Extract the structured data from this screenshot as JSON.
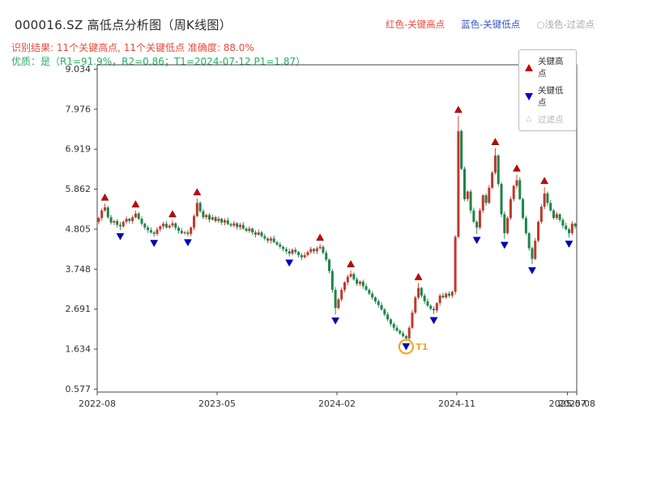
{
  "header": {
    "title": "000016.SZ 高低点分析图（周K线图）",
    "legend_top": {
      "high": "红色-关键高点",
      "low": "蓝色-关键低点",
      "filter": "○浅色-过滤点"
    },
    "result_line": "识别结果: 11个关键高点, 11个关键低点  准确度: 88.0%",
    "quality_line": "优质：是（R1=91.9%，R2=0.86；T1=2024-07-12 P1=1.87）"
  },
  "legend_box": {
    "items": [
      {
        "label": "关键高点",
        "type": "key-high"
      },
      {
        "label": "关键低点",
        "type": "key-low"
      },
      {
        "label": "过滤点",
        "type": "filtered"
      }
    ]
  },
  "colors": {
    "up": "#c0392b",
    "down": "#1e8449",
    "key_high_marker": "#cc0000",
    "key_low_marker": "#0000cd",
    "t1_ring": "#f5a623",
    "axis": "#444444",
    "tick_text": "#333333"
  },
  "chart_data": {
    "type": "candlestick",
    "title": "000016.SZ 高低点分析图（周K线图）",
    "period": "weekly",
    "ylim": [
      0.5,
      9.15
    ],
    "y_ticks": [
      0.577,
      1.634,
      2.691,
      3.748,
      4.805,
      5.862,
      6.919,
      7.976,
      9.034
    ],
    "x_ticks": [
      {
        "label": "2022-08",
        "i": 0
      },
      {
        "label": "2023-05",
        "i": 39
      },
      {
        "label": "2024-02",
        "i": 78
      },
      {
        "label": "2024-11",
        "i": 117
      },
      {
        "label": "2025-07",
        "i": 153
      },
      {
        "label": "2025-08",
        "i": 156
      }
    ],
    "open_first": 5.0,
    "closes": [
      5.1,
      5.3,
      5.38,
      5.12,
      4.98,
      5.02,
      4.92,
      4.88,
      5.0,
      5.08,
      5.02,
      5.12,
      5.22,
      5.08,
      4.95,
      4.85,
      4.78,
      4.72,
      4.68,
      4.8,
      4.88,
      4.95,
      4.85,
      4.9,
      4.96,
      4.84,
      4.76,
      4.7,
      4.72,
      4.68,
      4.85,
      5.15,
      5.5,
      5.28,
      5.12,
      5.18,
      5.06,
      5.12,
      5.02,
      5.08,
      4.98,
      5.04,
      4.94,
      4.9,
      4.96,
      4.86,
      4.92,
      4.82,
      4.76,
      4.82,
      4.72,
      4.66,
      4.72,
      4.62,
      4.56,
      4.5,
      4.56,
      4.46,
      4.4,
      4.34,
      4.28,
      4.22,
      4.16,
      4.26,
      4.2,
      4.12,
      4.06,
      4.12,
      4.2,
      4.28,
      4.22,
      4.3,
      4.34,
      4.18,
      4.0,
      3.7,
      3.2,
      2.72,
      2.95,
      3.2,
      3.4,
      3.55,
      3.62,
      3.48,
      3.36,
      3.42,
      3.3,
      3.2,
      3.1,
      3.0,
      2.9,
      2.8,
      2.68,
      2.55,
      2.42,
      2.3,
      2.2,
      2.12,
      2.05,
      1.98,
      1.92,
      2.2,
      2.6,
      3.0,
      3.25,
      3.05,
      2.9,
      2.78,
      2.7,
      2.66,
      2.85,
      3.05,
      3.0,
      3.1,
      3.05,
      3.15,
      4.6,
      7.4,
      6.4,
      5.6,
      5.8,
      5.3,
      5.0,
      4.85,
      5.3,
      5.7,
      5.5,
      5.9,
      6.3,
      6.75,
      6.0,
      5.2,
      4.7,
      5.1,
      5.6,
      5.95,
      6.1,
      5.6,
      5.1,
      4.7,
      4.3,
      4.02,
      4.5,
      5.0,
      5.4,
      5.75,
      5.5,
      5.3,
      5.1,
      5.2,
      5.05,
      4.9,
      4.8,
      4.7,
      4.95,
      4.88
    ],
    "key_highs": [
      {
        "i": 2,
        "price": 5.48
      },
      {
        "i": 12,
        "price": 5.3
      },
      {
        "i": 24,
        "price": 5.04
      },
      {
        "i": 32,
        "price": 5.62
      },
      {
        "i": 72,
        "price": 4.42
      },
      {
        "i": 82,
        "price": 3.72
      },
      {
        "i": 104,
        "price": 3.38
      },
      {
        "i": 117,
        "price": 7.8
      },
      {
        "i": 129,
        "price": 6.95
      },
      {
        "i": 136,
        "price": 6.25
      },
      {
        "i": 145,
        "price": 5.92
      }
    ],
    "key_lows": [
      {
        "i": 7,
        "price": 4.78
      },
      {
        "i": 18,
        "price": 4.6
      },
      {
        "i": 29,
        "price": 4.62
      },
      {
        "i": 62,
        "price": 4.08
      },
      {
        "i": 77,
        "price": 2.55
      },
      {
        "i": 100,
        "price": 1.87
      },
      {
        "i": 109,
        "price": 2.56
      },
      {
        "i": 123,
        "price": 4.68
      },
      {
        "i": 132,
        "price": 4.55
      },
      {
        "i": 141,
        "price": 3.88
      },
      {
        "i": 153,
        "price": 4.58
      }
    ],
    "t1": {
      "i": 100,
      "price": 1.87,
      "label": "T1"
    },
    "counts": {
      "key_highs": 11,
      "key_lows": 11,
      "accuracy": "88.0%"
    }
  }
}
